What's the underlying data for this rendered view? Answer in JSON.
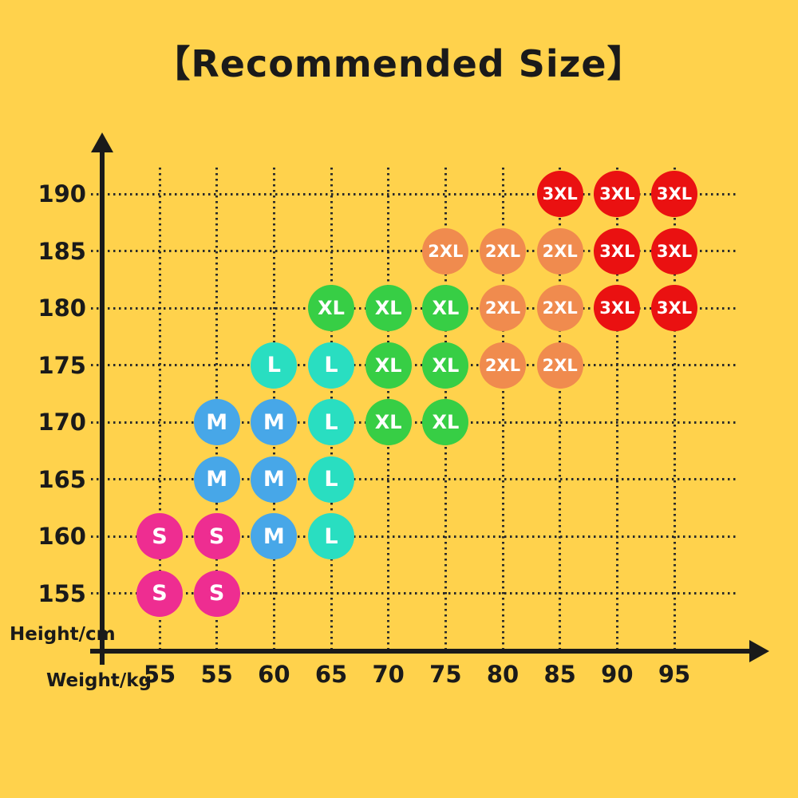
{
  "title": "【Recommended Size】",
  "axes": {
    "y_label": "Height/cm",
    "x_label": "Weight/kg",
    "y_ticks": [
      "190",
      "185",
      "180",
      "175",
      "170",
      "165",
      "160",
      "155"
    ],
    "x_ticks": [
      "55",
      "55",
      "60",
      "65",
      "70",
      "75",
      "80",
      "85",
      "90",
      "95"
    ]
  },
  "colors": {
    "background": "#FFD24C",
    "ink": "#1A1A1A",
    "grid_dots": "#2A2A2A",
    "dot_text": "#FFFFFF",
    "sizes": {
      "S": "#EE2D91",
      "M": "#47A7E8",
      "L": "#29DEC1",
      "XL": "#37CE45",
      "2XL": "#F08B4E",
      "3XL": "#EA1111"
    }
  },
  "chart_data": {
    "type": "scatter",
    "title": "【Recommended Size】",
    "xlabel": "Weight/kg",
    "ylabel": "Height/cm",
    "x_categories": [
      "55",
      "55",
      "60",
      "65",
      "70",
      "75",
      "80",
      "85",
      "90",
      "95"
    ],
    "y_categories": [
      190,
      185,
      180,
      175,
      170,
      165,
      160,
      155
    ],
    "grid": true,
    "legend": false,
    "points": [
      {
        "row": 0,
        "col": 7,
        "height": 190,
        "weight": 85,
        "size": "3XL"
      },
      {
        "row": 0,
        "col": 8,
        "height": 190,
        "weight": 90,
        "size": "3XL"
      },
      {
        "row": 0,
        "col": 9,
        "height": 190,
        "weight": 95,
        "size": "3XL"
      },
      {
        "row": 1,
        "col": 5,
        "height": 185,
        "weight": 75,
        "size": "2XL"
      },
      {
        "row": 1,
        "col": 6,
        "height": 185,
        "weight": 80,
        "size": "2XL"
      },
      {
        "row": 1,
        "col": 7,
        "height": 185,
        "weight": 85,
        "size": "2XL"
      },
      {
        "row": 1,
        "col": 8,
        "height": 185,
        "weight": 90,
        "size": "3XL"
      },
      {
        "row": 1,
        "col": 9,
        "height": 185,
        "weight": 95,
        "size": "3XL"
      },
      {
        "row": 2,
        "col": 3,
        "height": 180,
        "weight": 65,
        "size": "XL"
      },
      {
        "row": 2,
        "col": 4,
        "height": 180,
        "weight": 70,
        "size": "XL"
      },
      {
        "row": 2,
        "col": 5,
        "height": 180,
        "weight": 75,
        "size": "XL"
      },
      {
        "row": 2,
        "col": 6,
        "height": 180,
        "weight": 80,
        "size": "2XL"
      },
      {
        "row": 2,
        "col": 7,
        "height": 180,
        "weight": 85,
        "size": "2XL"
      },
      {
        "row": 2,
        "col": 8,
        "height": 180,
        "weight": 90,
        "size": "3XL"
      },
      {
        "row": 2,
        "col": 9,
        "height": 180,
        "weight": 95,
        "size": "3XL"
      },
      {
        "row": 3,
        "col": 2,
        "height": 175,
        "weight": 60,
        "size": "L"
      },
      {
        "row": 3,
        "col": 3,
        "height": 175,
        "weight": 65,
        "size": "L"
      },
      {
        "row": 3,
        "col": 4,
        "height": 175,
        "weight": 70,
        "size": "XL"
      },
      {
        "row": 3,
        "col": 5,
        "height": 175,
        "weight": 75,
        "size": "XL"
      },
      {
        "row": 3,
        "col": 6,
        "height": 175,
        "weight": 80,
        "size": "2XL"
      },
      {
        "row": 3,
        "col": 7,
        "height": 175,
        "weight": 85,
        "size": "2XL"
      },
      {
        "row": 4,
        "col": 1,
        "height": 170,
        "weight": 55,
        "size": "M"
      },
      {
        "row": 4,
        "col": 2,
        "height": 170,
        "weight": 60,
        "size": "M"
      },
      {
        "row": 4,
        "col": 3,
        "height": 170,
        "weight": 65,
        "size": "L"
      },
      {
        "row": 4,
        "col": 4,
        "height": 170,
        "weight": 70,
        "size": "XL"
      },
      {
        "row": 4,
        "col": 5,
        "height": 170,
        "weight": 75,
        "size": "XL"
      },
      {
        "row": 5,
        "col": 1,
        "height": 165,
        "weight": 55,
        "size": "M"
      },
      {
        "row": 5,
        "col": 2,
        "height": 165,
        "weight": 60,
        "size": "M"
      },
      {
        "row": 5,
        "col": 3,
        "height": 165,
        "weight": 65,
        "size": "L"
      },
      {
        "row": 6,
        "col": 0,
        "height": 160,
        "weight": 55,
        "size": "S"
      },
      {
        "row": 6,
        "col": 1,
        "height": 160,
        "weight": 55,
        "size": "S"
      },
      {
        "row": 6,
        "col": 2,
        "height": 160,
        "weight": 60,
        "size": "M"
      },
      {
        "row": 6,
        "col": 3,
        "height": 160,
        "weight": 65,
        "size": "L"
      },
      {
        "row": 7,
        "col": 0,
        "height": 155,
        "weight": 55,
        "size": "S"
      },
      {
        "row": 7,
        "col": 1,
        "height": 155,
        "weight": 55,
        "size": "S"
      }
    ]
  }
}
